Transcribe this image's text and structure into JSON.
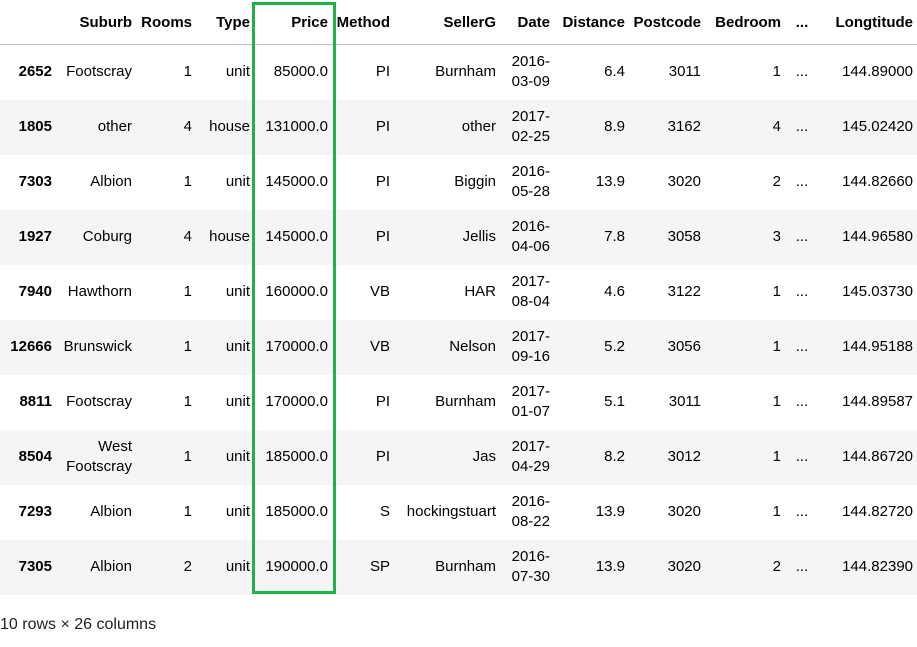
{
  "columns": [
    "",
    "Suburb",
    "Rooms",
    "Type",
    "Price",
    "Method",
    "SellerG",
    "Date",
    "Distance",
    "Postcode",
    "Bedroom",
    "...",
    "Longtitude"
  ],
  "rows": [
    {
      "index": "2652",
      "suburb": "Footscray",
      "rooms": "1",
      "type": "unit",
      "price": "85000.0",
      "method": "PI",
      "seller": "Burnham",
      "date": "2016-03-09",
      "distance": "6.4",
      "postcode": "3011",
      "bedroom": "1",
      "ellipsis": "...",
      "longtitude": "144.89000"
    },
    {
      "index": "1805",
      "suburb": "other",
      "rooms": "4",
      "type": "house",
      "price": "131000.0",
      "method": "PI",
      "seller": "other",
      "date": "2017-02-25",
      "distance": "8.9",
      "postcode": "3162",
      "bedroom": "4",
      "ellipsis": "...",
      "longtitude": "145.02420"
    },
    {
      "index": "7303",
      "suburb": "Albion",
      "rooms": "1",
      "type": "unit",
      "price": "145000.0",
      "method": "PI",
      "seller": "Biggin",
      "date": "2016-05-28",
      "distance": "13.9",
      "postcode": "3020",
      "bedroom": "2",
      "ellipsis": "...",
      "longtitude": "144.82660"
    },
    {
      "index": "1927",
      "suburb": "Coburg",
      "rooms": "4",
      "type": "house",
      "price": "145000.0",
      "method": "PI",
      "seller": "Jellis",
      "date": "2016-04-06",
      "distance": "7.8",
      "postcode": "3058",
      "bedroom": "3",
      "ellipsis": "...",
      "longtitude": "144.96580"
    },
    {
      "index": "7940",
      "suburb": "Hawthorn",
      "rooms": "1",
      "type": "unit",
      "price": "160000.0",
      "method": "VB",
      "seller": "HAR",
      "date": "2017-08-04",
      "distance": "4.6",
      "postcode": "3122",
      "bedroom": "1",
      "ellipsis": "...",
      "longtitude": "145.03730"
    },
    {
      "index": "12666",
      "suburb": "Brunswick",
      "rooms": "1",
      "type": "unit",
      "price": "170000.0",
      "method": "VB",
      "seller": "Nelson",
      "date": "2017-09-16",
      "distance": "5.2",
      "postcode": "3056",
      "bedroom": "1",
      "ellipsis": "...",
      "longtitude": "144.95188"
    },
    {
      "index": "8811",
      "suburb": "Footscray",
      "rooms": "1",
      "type": "unit",
      "price": "170000.0",
      "method": "PI",
      "seller": "Burnham",
      "date": "2017-01-07",
      "distance": "5.1",
      "postcode": "3011",
      "bedroom": "1",
      "ellipsis": "...",
      "longtitude": "144.89587"
    },
    {
      "index": "8504",
      "suburb": "West Footscray",
      "rooms": "1",
      "type": "unit",
      "price": "185000.0",
      "method": "PI",
      "seller": "Jas",
      "date": "2017-04-29",
      "distance": "8.2",
      "postcode": "3012",
      "bedroom": "1",
      "ellipsis": "...",
      "longtitude": "144.86720"
    },
    {
      "index": "7293",
      "suburb": "Albion",
      "rooms": "1",
      "type": "unit",
      "price": "185000.0",
      "method": "S",
      "seller": "hockingstuart",
      "date": "2016-08-22",
      "distance": "13.9",
      "postcode": "3020",
      "bedroom": "1",
      "ellipsis": "...",
      "longtitude": "144.82720"
    },
    {
      "index": "7305",
      "suburb": "Albion",
      "rooms": "2",
      "type": "unit",
      "price": "190000.0",
      "method": "SP",
      "seller": "Burnham",
      "date": "2016-07-30",
      "distance": "13.9",
      "postcode": "3020",
      "bedroom": "2",
      "ellipsis": "...",
      "longtitude": "144.82390"
    }
  ],
  "caption": "10 rows × 26 columns",
  "highlight": {
    "column": "Price",
    "color": "#22b04b"
  }
}
